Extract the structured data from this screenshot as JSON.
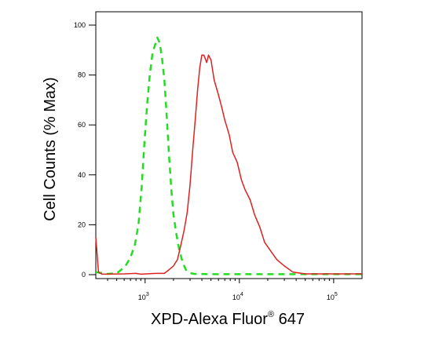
{
  "chart_data": {
    "type": "line",
    "xlabel": "XPD-Alexa Fluor",
    "xlabel_sup": "®",
    "xlabel_suffix": " 647",
    "ylabel": "Cell Counts (% Max)",
    "x_scale": "log",
    "xlim": [
      300,
      200000
    ],
    "ylim": [
      0,
      100
    ],
    "grid": false,
    "legend": "none",
    "y_ticks": [
      {
        "value": 0,
        "label": "0"
      },
      {
        "value": 20,
        "label": "20"
      },
      {
        "value": 40,
        "label": "40"
      },
      {
        "value": 60,
        "label": "60"
      },
      {
        "value": 80,
        "label": "80"
      },
      {
        "value": 100,
        "label": "100"
      }
    ],
    "x_ticks": [
      {
        "value": 1000,
        "base": "10",
        "exp": "3"
      },
      {
        "value": 10000,
        "base": "10",
        "exp": "4"
      },
      {
        "value": 100000,
        "base": "10",
        "exp": "5"
      }
    ],
    "series": [
      {
        "style": "dashed",
        "color": "#22dd22",
        "points": [
          [
            300,
            1
          ],
          [
            400,
            0.3
          ],
          [
            500,
            0.5
          ],
          [
            560,
            2
          ],
          [
            620,
            3.5
          ],
          [
            700,
            7
          ],
          [
            780,
            12
          ],
          [
            850,
            20
          ],
          [
            920,
            35
          ],
          [
            980,
            52
          ],
          [
            1050,
            68
          ],
          [
            1120,
            80
          ],
          [
            1200,
            89
          ],
          [
            1300,
            93
          ],
          [
            1350,
            95
          ],
          [
            1420,
            93
          ],
          [
            1500,
            88
          ],
          [
            1600,
            78
          ],
          [
            1700,
            63
          ],
          [
            1800,
            47
          ],
          [
            1900,
            34
          ],
          [
            2000,
            24
          ],
          [
            2150,
            16
          ],
          [
            2300,
            10
          ],
          [
            2500,
            5
          ],
          [
            2700,
            2
          ],
          [
            2900,
            0.8
          ],
          [
            3300,
            0.3
          ],
          [
            5000,
            0.2
          ],
          [
            10000,
            0.2
          ],
          [
            30000,
            0.2
          ],
          [
            200000,
            0.2
          ]
        ]
      },
      {
        "style": "solid",
        "color": "#dd2222",
        "points": [
          [
            300,
            15
          ],
          [
            310,
            8
          ],
          [
            320,
            1
          ],
          [
            350,
            0.2
          ],
          [
            600,
            0.3
          ],
          [
            800,
            0.5
          ],
          [
            900,
            0.2
          ],
          [
            1300,
            0.5
          ],
          [
            1600,
            0.5
          ],
          [
            1800,
            2
          ],
          [
            2000,
            3.5
          ],
          [
            2200,
            6
          ],
          [
            2400,
            12
          ],
          [
            2600,
            18
          ],
          [
            2800,
            25
          ],
          [
            3000,
            36
          ],
          [
            3200,
            50
          ],
          [
            3400,
            62
          ],
          [
            3600,
            74
          ],
          [
            3800,
            83
          ],
          [
            4000,
            88
          ],
          [
            4200,
            88
          ],
          [
            4500,
            85
          ],
          [
            4700,
            88
          ],
          [
            5000,
            86
          ],
          [
            5400,
            78
          ],
          [
            6000,
            72
          ],
          [
            6500,
            67
          ],
          [
            7000,
            62
          ],
          [
            7800,
            56
          ],
          [
            8500,
            49
          ],
          [
            9500,
            45
          ],
          [
            10500,
            38
          ],
          [
            11500,
            34
          ],
          [
            13000,
            30
          ],
          [
            14500,
            24
          ],
          [
            16500,
            19
          ],
          [
            18500,
            13
          ],
          [
            21000,
            10
          ],
          [
            25000,
            6
          ],
          [
            30000,
            3.5
          ],
          [
            37000,
            1
          ],
          [
            50000,
            0.3
          ],
          [
            80000,
            0.3
          ],
          [
            120000,
            0.3
          ],
          [
            200000,
            0.3
          ]
        ]
      }
    ]
  }
}
